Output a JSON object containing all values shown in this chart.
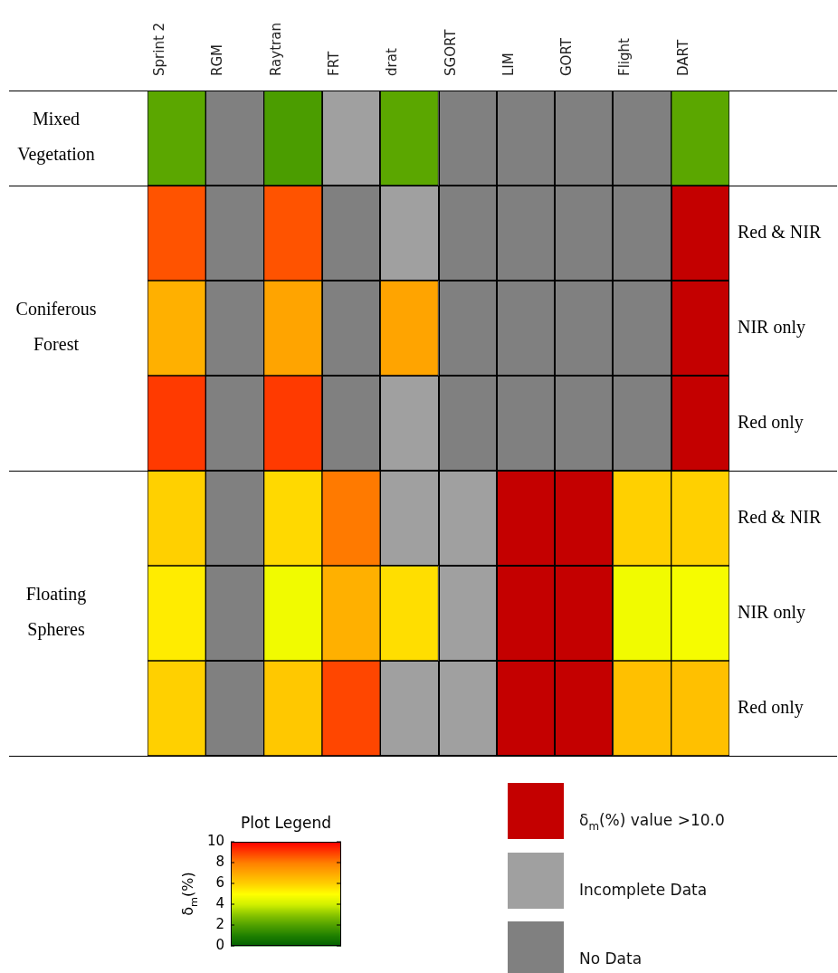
{
  "chart_data": {
    "type": "heatmap",
    "categories": [
      "Sprint 2",
      "RGM",
      "Raytran",
      "FRT",
      "drat",
      "SGORT",
      "LIM",
      "GORT",
      "Flight",
      "DART"
    ],
    "y_categories": [
      "Mixed Vegetation",
      null,
      "Coniferous Forest",
      null,
      null,
      "Floating Spheres",
      null
    ],
    "y2_categories": [
      null,
      "Red & NIR",
      "NIR only",
      "Red only",
      "Red & NIR",
      "NIR only",
      "Red only"
    ],
    "cells": [
      [
        2.2,
        null,
        1.9,
        null,
        2.2,
        null,
        null,
        null,
        null,
        2.2
      ],
      [
        8.7,
        null,
        8.7,
        null,
        null,
        null,
        null,
        null,
        null,
        null
      ],
      [
        6.8,
        null,
        7.1,
        null,
        7.1,
        null,
        null,
        null,
        null,
        null
      ],
      [
        9.1,
        null,
        9.1,
        null,
        null,
        null,
        null,
        null,
        null,
        null
      ],
      [
        6.0,
        null,
        5.8,
        8.1,
        null,
        null,
        null,
        null,
        6.0,
        6.0
      ],
      [
        5.4,
        null,
        4.7,
        6.8,
        5.7,
        null,
        null,
        null,
        4.7,
        4.8
      ],
      [
        6.0,
        null,
        6.2,
        8.9,
        null,
        null,
        null,
        null,
        6.4,
        6.4
      ]
    ],
    "colors": [
      [
        null,
        "#808080",
        null,
        "#a0a0a0",
        null,
        "#808080",
        "#808080",
        "#808080",
        "#808080",
        null
      ],
      [
        null,
        "#808080",
        null,
        "#808080",
        "#a0a0a0",
        "#808080",
        "#808080",
        "#808080",
        "#808080",
        "#c40000"
      ],
      [
        null,
        "#808080",
        null,
        "#808080",
        null,
        "#808080",
        "#808080",
        "#808080",
        "#808080",
        "#c40000"
      ],
      [
        null,
        "#808080",
        null,
        "#808080",
        "#a0a0a0",
        "#808080",
        "#808080",
        "#808080",
        "#808080",
        "#c40000"
      ],
      [
        null,
        "#808080",
        null,
        null,
        "#a0a0a0",
        "#a0a0a0",
        "#c40000",
        "#c40000",
        null,
        null
      ],
      [
        null,
        "#808080",
        null,
        null,
        null,
        "#a0a0a0",
        "#c40000",
        "#c40000",
        null,
        null
      ],
      [
        null,
        "#808080",
        null,
        null,
        "#a0a0a0",
        "#a0a0a0",
        "#c40000",
        "#c40000",
        null,
        null
      ]
    ],
    "clim": [
      0,
      10
    ],
    "cticks": [
      0,
      2,
      4,
      6,
      8,
      10
    ],
    "clabel": "δ$_{m}$(%)",
    "legend_title": "Plot Legend",
    "annotations": [
      "δ$_{m}$(%) value >10.0",
      "Incomplete Data",
      "No Data"
    ]
  }
}
